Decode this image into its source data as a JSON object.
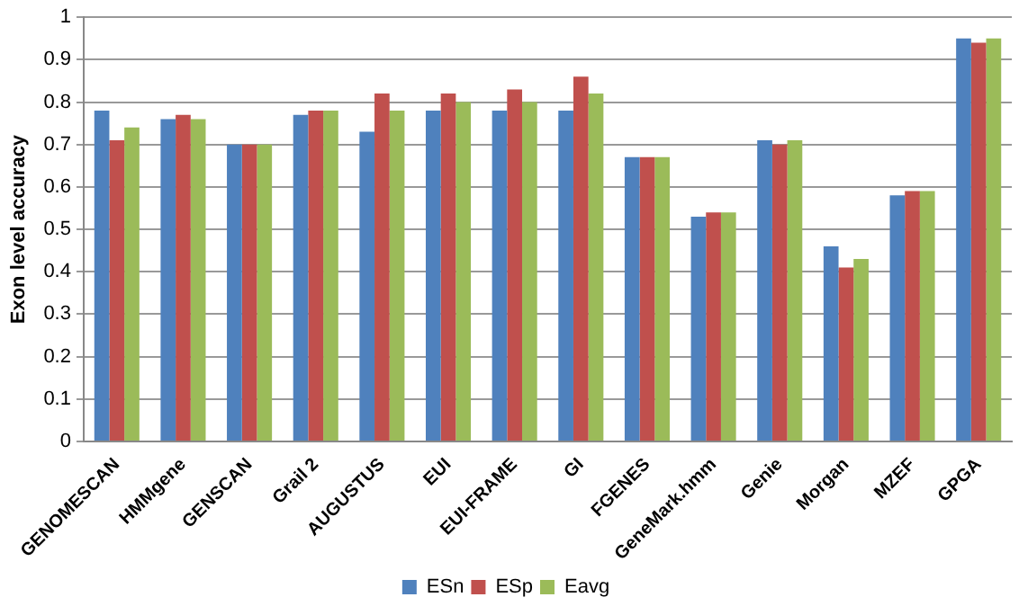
{
  "chart_data": {
    "type": "bar",
    "ylabel": "Exon level accuracy",
    "categories": [
      "GENOMESCAN",
      "HMMgene",
      "GENSCAN",
      "Grail 2",
      "AUGUSTUS",
      "EUI",
      "EUI-FRAME",
      "GI",
      "FGENES",
      "GeneMark.hmm",
      "Genie",
      "Morgan",
      "MZEF",
      "GPGA"
    ],
    "series": [
      {
        "name": "ESn",
        "color": "#4f81bd",
        "values": [
          0.78,
          0.76,
          0.7,
          0.77,
          0.73,
          0.78,
          0.78,
          0.78,
          0.67,
          0.53,
          0.71,
          0.46,
          0.58,
          0.95
        ]
      },
      {
        "name": "ESp",
        "color": "#c0504d",
        "values": [
          0.71,
          0.77,
          0.7,
          0.78,
          0.82,
          0.82,
          0.83,
          0.86,
          0.67,
          0.54,
          0.7,
          0.41,
          0.59,
          0.94
        ]
      },
      {
        "name": "Eavg",
        "color": "#9bbb59",
        "values": [
          0.74,
          0.76,
          0.7,
          0.78,
          0.78,
          0.8,
          0.8,
          0.82,
          0.67,
          0.54,
          0.71,
          0.43,
          0.59,
          0.95
        ]
      }
    ],
    "ylim": [
      0,
      1
    ],
    "yticks": [
      0,
      0.1,
      0.2,
      0.3,
      0.4,
      0.5,
      0.6,
      0.7,
      0.8,
      0.9,
      1
    ],
    "grid": "y",
    "legend": "bottom"
  }
}
